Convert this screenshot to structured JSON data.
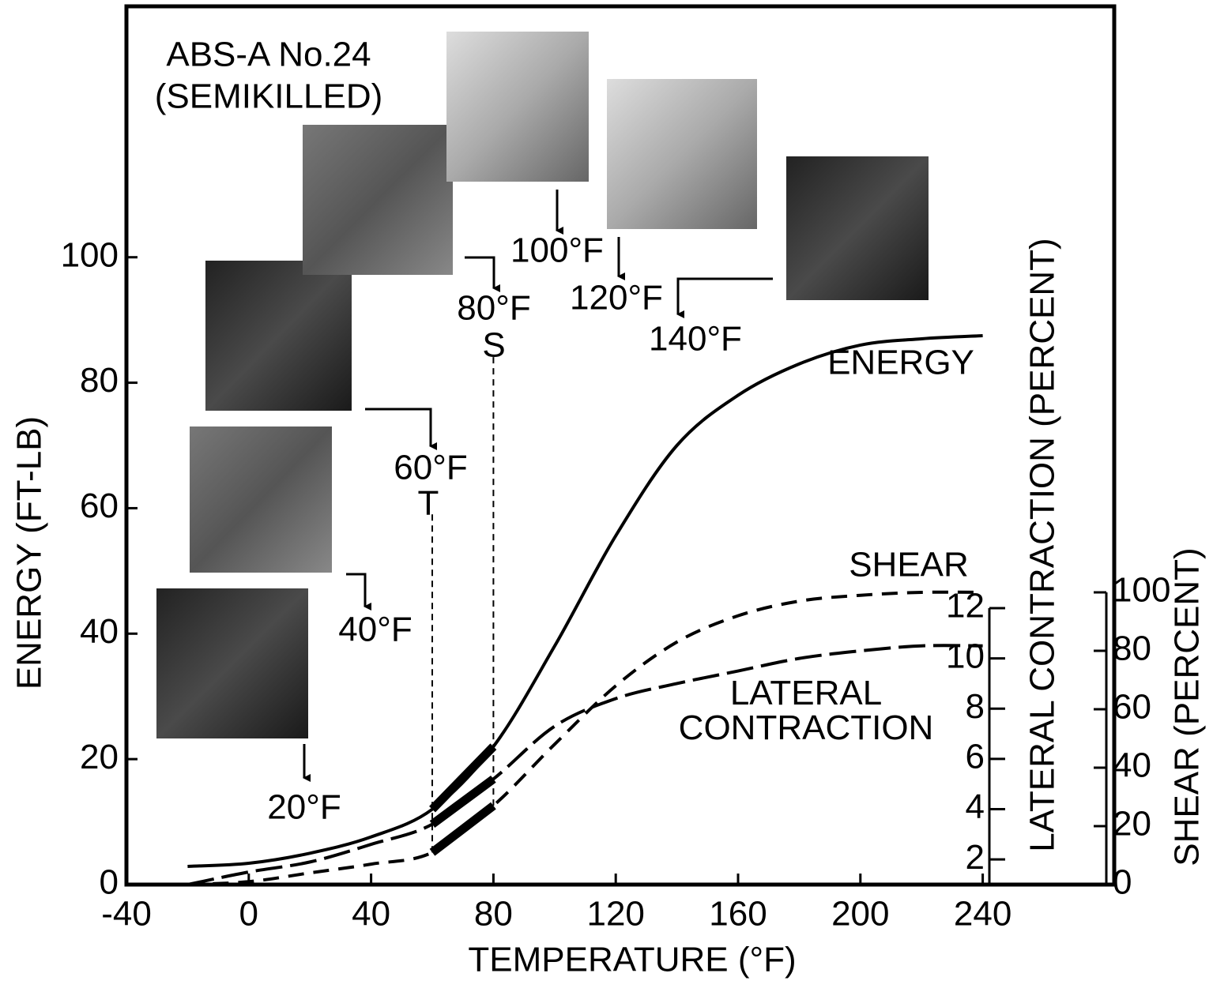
{
  "chart_data": {
    "type": "line",
    "xlabel": "TEMPERATURE (°F)",
    "ylabel": "ENERGY (FT-LB)",
    "y2label": "LATERAL CONTRACTION (PERCENT)",
    "y3label": "SHEAR (PERCENT)",
    "x": [
      -20,
      0,
      20,
      40,
      60,
      80,
      100,
      120,
      140,
      160,
      180,
      200,
      220,
      240
    ],
    "xlim": [
      -40,
      283
    ],
    "xticks": [
      -40,
      0,
      40,
      80,
      120,
      160,
      200,
      240
    ],
    "ylim": [
      0,
      140
    ],
    "yticks": [
      0,
      20,
      40,
      60,
      80,
      100
    ],
    "y2lim": [
      1,
      12
    ],
    "y2ticks": [
      2,
      4,
      6,
      8,
      10,
      12
    ],
    "y3lim": [
      0,
      100
    ],
    "y3ticks": [
      0,
      20,
      40,
      60,
      80,
      100
    ],
    "series": [
      {
        "name": "ENERGY",
        "color": "#000000",
        "values": [
          2.9,
          3.4,
          5,
          7.6,
          12,
          22,
          38,
          55.6,
          70,
          78,
          83,
          86,
          87,
          87.5
        ]
      },
      {
        "name": "SHEAR",
        "color": "#000000",
        "axis": "y3",
        "values": [
          0,
          1,
          4,
          7,
          11,
          27,
          48,
          68,
          83,
          92,
          97,
          99,
          100,
          100
        ]
      },
      {
        "name": "LATERAL CONTRACTION",
        "color": "#000000",
        "axis": "y2",
        "values": [
          1,
          1.5,
          1.9,
          2.6,
          3.4,
          5.2,
          7.3,
          8.4,
          9,
          9.5,
          10,
          10.3,
          10.5,
          10.5
        ]
      }
    ],
    "annotations": [
      "ABS-A No.24",
      "(SEMIKILLED)",
      "20°F",
      "40°F",
      "60°F",
      "T",
      "80°F",
      "S",
      "100°F",
      "120°F",
      "140°F"
    ]
  }
}
